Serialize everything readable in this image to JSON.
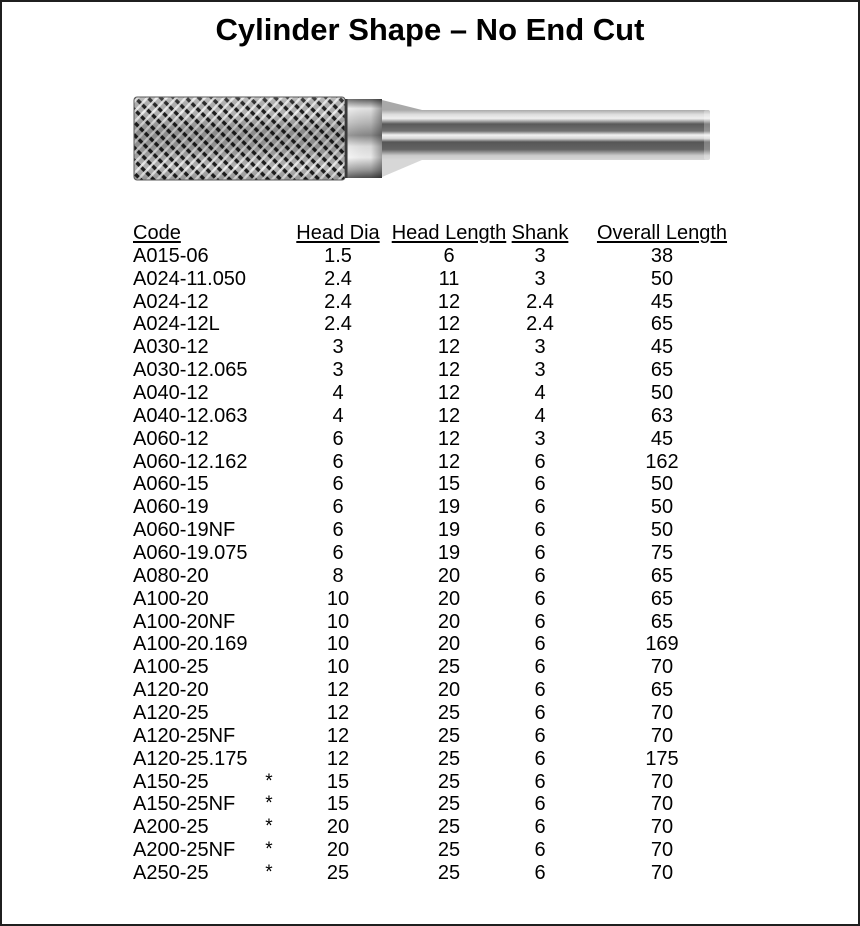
{
  "page": {
    "title": "Cylinder Shape – No End Cut",
    "colors": {
      "background": "#ffffff",
      "ink": "#000000",
      "page_border": "#1f1f1f"
    }
  },
  "illustration": {
    "label": "cylinder-burr-no-end-cut"
  },
  "table": {
    "columns": [
      "Code",
      "Head Dia",
      "Head Length",
      "Shank",
      "Overall Length"
    ],
    "star_marker": "*",
    "rows": [
      {
        "code": "A015-06",
        "star": "",
        "head_dia": "1.5",
        "head_length": "6",
        "shank": "3",
        "overall_length": "38"
      },
      {
        "code": "A024-11.050",
        "star": "",
        "head_dia": "2.4",
        "head_length": "11",
        "shank": "3",
        "overall_length": "50"
      },
      {
        "code": "A024-12",
        "star": "",
        "head_dia": "2.4",
        "head_length": "12",
        "shank": "2.4",
        "overall_length": "45"
      },
      {
        "code": "A024-12L",
        "star": "",
        "head_dia": "2.4",
        "head_length": "12",
        "shank": "2.4",
        "overall_length": "65"
      },
      {
        "code": "A030-12",
        "star": "",
        "head_dia": "3",
        "head_length": "12",
        "shank": "3",
        "overall_length": "45"
      },
      {
        "code": "A030-12.065",
        "star": "",
        "head_dia": "3",
        "head_length": "12",
        "shank": "3",
        "overall_length": "65"
      },
      {
        "code": "A040-12",
        "star": "",
        "head_dia": "4",
        "head_length": "12",
        "shank": "4",
        "overall_length": "50"
      },
      {
        "code": "A040-12.063",
        "star": "",
        "head_dia": "4",
        "head_length": "12",
        "shank": "4",
        "overall_length": "63"
      },
      {
        "code": "A060-12",
        "star": "",
        "head_dia": "6",
        "head_length": "12",
        "shank": "3",
        "overall_length": "45"
      },
      {
        "code": "A060-12.162",
        "star": "",
        "head_dia": "6",
        "head_length": "12",
        "shank": "6",
        "overall_length": "162"
      },
      {
        "code": "A060-15",
        "star": "",
        "head_dia": "6",
        "head_length": "15",
        "shank": "6",
        "overall_length": "50"
      },
      {
        "code": "A060-19",
        "star": "",
        "head_dia": "6",
        "head_length": "19",
        "shank": "6",
        "overall_length": "50"
      },
      {
        "code": "A060-19NF",
        "star": "",
        "head_dia": "6",
        "head_length": "19",
        "shank": "6",
        "overall_length": "50"
      },
      {
        "code": "A060-19.075",
        "star": "",
        "head_dia": "6",
        "head_length": "19",
        "shank": "6",
        "overall_length": "75"
      },
      {
        "code": "A080-20",
        "star": "",
        "head_dia": "8",
        "head_length": "20",
        "shank": "6",
        "overall_length": "65"
      },
      {
        "code": "A100-20",
        "star": "",
        "head_dia": "10",
        "head_length": "20",
        "shank": "6",
        "overall_length": "65"
      },
      {
        "code": "A100-20NF",
        "star": "",
        "head_dia": "10",
        "head_length": "20",
        "shank": "6",
        "overall_length": "65"
      },
      {
        "code": "A100-20.169",
        "star": "",
        "head_dia": "10",
        "head_length": "20",
        "shank": "6",
        "overall_length": "169"
      },
      {
        "code": "A100-25",
        "star": "",
        "head_dia": "10",
        "head_length": "25",
        "shank": "6",
        "overall_length": "70"
      },
      {
        "code": "A120-20",
        "star": "",
        "head_dia": "12",
        "head_length": "20",
        "shank": "6",
        "overall_length": "65"
      },
      {
        "code": "A120-25",
        "star": "",
        "head_dia": "12",
        "head_length": "25",
        "shank": "6",
        "overall_length": "70"
      },
      {
        "code": "A120-25NF",
        "star": "",
        "head_dia": "12",
        "head_length": "25",
        "shank": "6",
        "overall_length": "70"
      },
      {
        "code": "A120-25.175",
        "star": "",
        "head_dia": "12",
        "head_length": "25",
        "shank": "6",
        "overall_length": "175"
      },
      {
        "code": "A150-25",
        "star": "*",
        "head_dia": "15",
        "head_length": "25",
        "shank": "6",
        "overall_length": "70"
      },
      {
        "code": "A150-25NF",
        "star": "*",
        "head_dia": "15",
        "head_length": "25",
        "shank": "6",
        "overall_length": "70"
      },
      {
        "code": "A200-25",
        "star": "*",
        "head_dia": "20",
        "head_length": "25",
        "shank": "6",
        "overall_length": "70"
      },
      {
        "code": "A200-25NF",
        "star": "*",
        "head_dia": "20",
        "head_length": "25",
        "shank": "6",
        "overall_length": "70"
      },
      {
        "code": "A250-25",
        "star": "*",
        "head_dia": "25",
        "head_length": "25",
        "shank": "6",
        "overall_length": "70"
      }
    ]
  }
}
